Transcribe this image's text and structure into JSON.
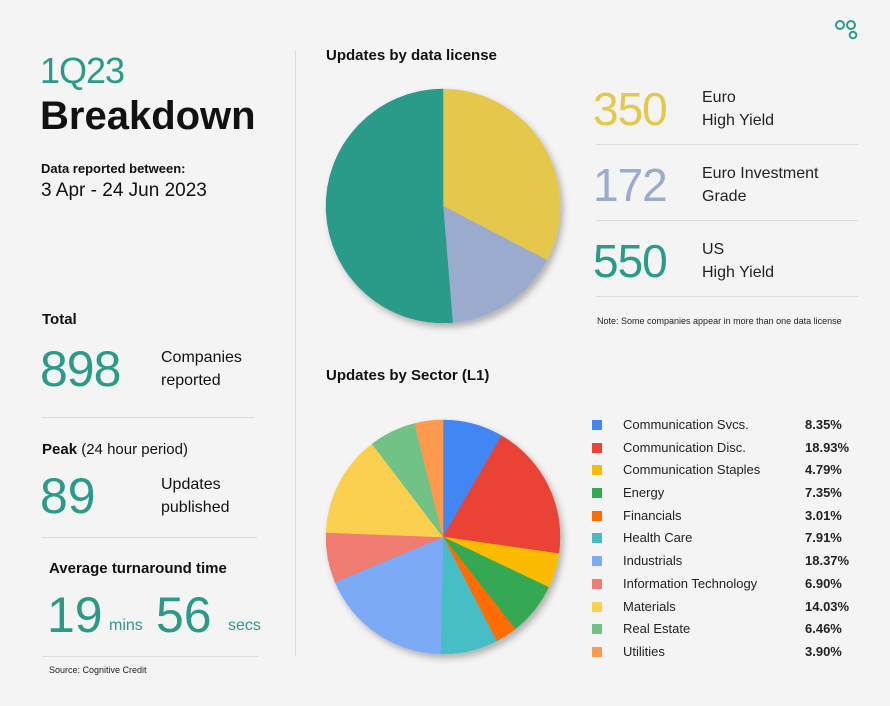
{
  "header": {
    "quarter": "1Q23",
    "title": "Breakdown",
    "reported_label": "Data reported between:",
    "reported_range": "3 Apr - 24 Jun 2023"
  },
  "stats": {
    "total_heading": "Total",
    "total_value": "898",
    "total_desc_line1": "Companies",
    "total_desc_line2": "reported",
    "peak_heading_bold": "Peak",
    "peak_heading_rest": "(24 hour period)",
    "peak_value": "89",
    "peak_desc_line1": "Updates",
    "peak_desc_line2": "published",
    "avg_heading": "Average turnaround time",
    "avg_minutes": "19",
    "avg_minutes_unit": "mins",
    "avg_seconds": "56",
    "avg_seconds_unit": "secs"
  },
  "source": "Source: Cognitive Credit",
  "license_section": {
    "heading": "Updates by data license",
    "note": "Note: Some companies appear in more than one data license",
    "items": [
      {
        "value": "350",
        "line1": "Euro",
        "line2": "High Yield",
        "color": "#e5c84b"
      },
      {
        "value": "172",
        "line1": "Euro Investment",
        "line2": "Grade",
        "color": "#9aabce"
      },
      {
        "value": "550",
        "line1": "US",
        "line2": "High Yield",
        "color": "#2a9a89"
      }
    ]
  },
  "sector_section": {
    "heading": "Updates by Sector (L1)",
    "items": [
      {
        "name": "Communication Svcs.",
        "pct": "8.35%",
        "color": "#4286f4"
      },
      {
        "name": "Communication Disc.",
        "pct": "18.93%",
        "color": "#ea4335"
      },
      {
        "name": "Communication Staples",
        "pct": "4.79%",
        "color": "#fbbc05"
      },
      {
        "name": "Energy",
        "pct": "7.35%",
        "color": "#34a853"
      },
      {
        "name": "Financials",
        "pct": "3.01%",
        "color": "#ff6d01"
      },
      {
        "name": "Health Care",
        "pct": "7.91%",
        "color": "#46bdc6"
      },
      {
        "name": "Industrials",
        "pct": "18.37%",
        "color": "#7baaf7"
      },
      {
        "name": "Information Technology",
        "pct": "6.90%",
        "color": "#f07b72"
      },
      {
        "name": "Materials",
        "pct": "14.03%",
        "color": "#fcd04f"
      },
      {
        "name": "Real Estate",
        "pct": "6.46%",
        "color": "#71c287"
      },
      {
        "name": "Utilities",
        "pct": "3.90%",
        "color": "#ff994d"
      }
    ]
  },
  "chart_data": [
    {
      "type": "pie",
      "title": "Updates by data license",
      "categories": [
        "Euro High Yield",
        "Euro Investment Grade",
        "US High Yield"
      ],
      "values": [
        350,
        172,
        550
      ],
      "colors": [
        "#e5c84b",
        "#9aabce",
        "#2a9a89"
      ]
    },
    {
      "type": "pie",
      "title": "Updates by Sector (L1)",
      "categories": [
        "Communication Svcs.",
        "Communication Disc.",
        "Communication Staples",
        "Energy",
        "Financials",
        "Health Care",
        "Industrials",
        "Information Technology",
        "Materials",
        "Real Estate",
        "Utilities"
      ],
      "values": [
        8.35,
        18.93,
        4.79,
        7.35,
        3.01,
        7.91,
        18.37,
        6.9,
        14.03,
        6.46,
        3.9
      ],
      "colors": [
        "#4286f4",
        "#ea4335",
        "#fbbc05",
        "#34a853",
        "#ff6d01",
        "#46bdc6",
        "#7baaf7",
        "#f07b72",
        "#fcd04f",
        "#71c287",
        "#ff994d"
      ]
    }
  ]
}
